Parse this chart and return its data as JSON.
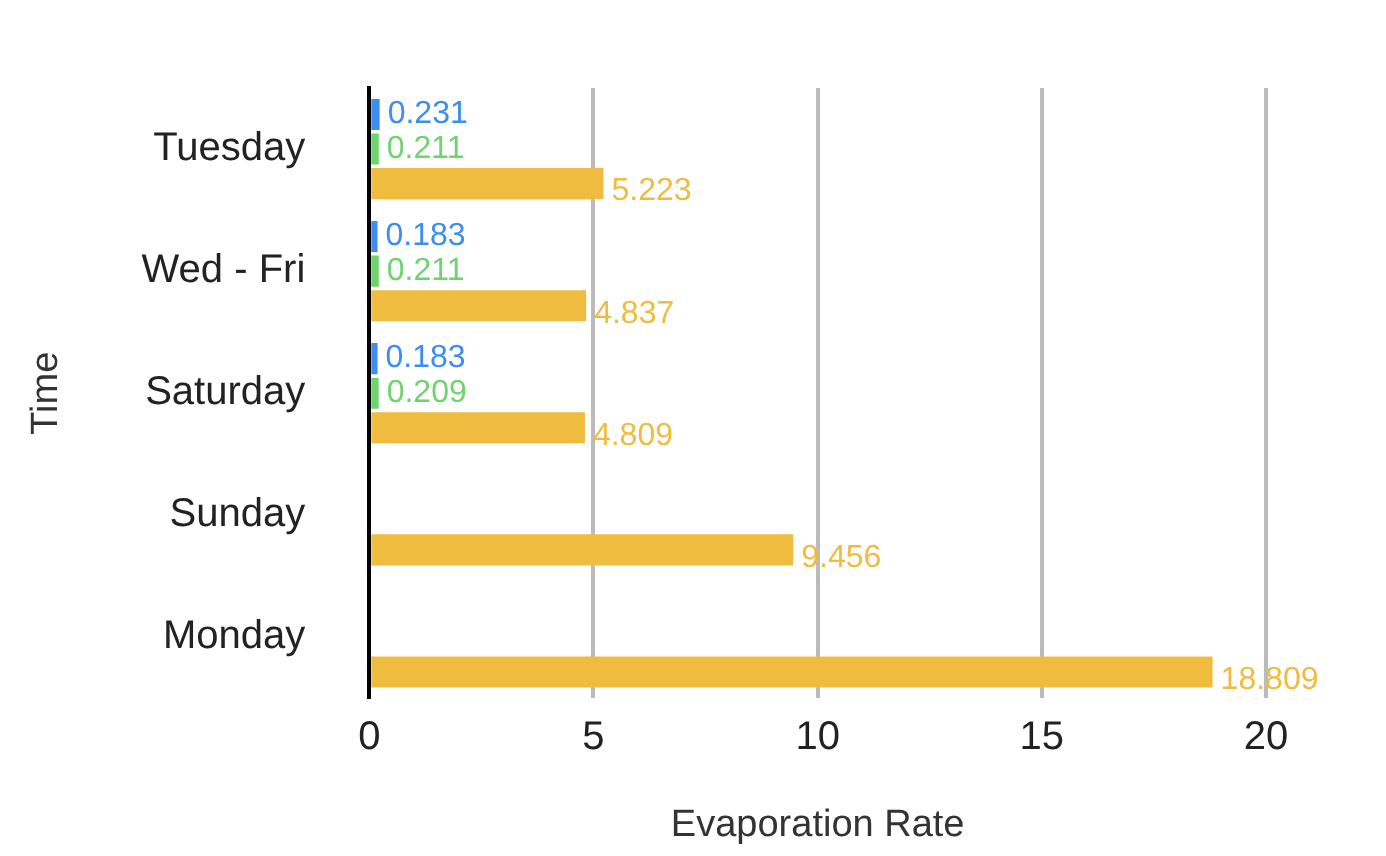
{
  "chart_data": {
    "type": "bar",
    "orientation": "horizontal",
    "xlabel": "Evaporation Rate",
    "ylabel": "Time",
    "categories": [
      "Tuesday",
      "Wed - Fri",
      "Saturday",
      "Sunday",
      "Monday"
    ],
    "series": [
      {
        "color": "#3d8ef0",
        "values": [
          0.231,
          0.183,
          0.183,
          null,
          null
        ]
      },
      {
        "color": "#6fd36f",
        "values": [
          0.211,
          0.211,
          0.209,
          null,
          null
        ]
      },
      {
        "color": "#f0bc40",
        "values": [
          5.223,
          4.837,
          4.809,
          9.456,
          18.809
        ]
      }
    ],
    "xlim": [
      0,
      20
    ],
    "xticks": [
      0,
      5,
      10,
      15,
      20
    ],
    "grid": "x",
    "legend": false,
    "data_labels": true
  }
}
